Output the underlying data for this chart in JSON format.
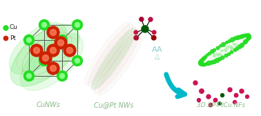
{
  "bg_color": "#ffffff",
  "label_cunws": "CuNWs",
  "label_cupt": "Cu@Pt NWs",
  "label_3d": "3D AP-PtCu NFs",
  "label_cu": "Cu",
  "label_pt": "Pt",
  "label_aa": "AA",
  "label_delta": "△",
  "cu_color": "#22dd22",
  "cu_light": "#88ff88",
  "pt_color": "#cc2200",
  "pt_light": "#ff8866",
  "cu_dark": "#005500",
  "arrow_color": "#00b8c8",
  "label_color": "#88bb88",
  "text_color_aa": "#88cccc",
  "nw_color": "#ccaa99",
  "frame_green": "#99ee99",
  "pt_purple": "#cc1155",
  "cube_color": "#555555"
}
